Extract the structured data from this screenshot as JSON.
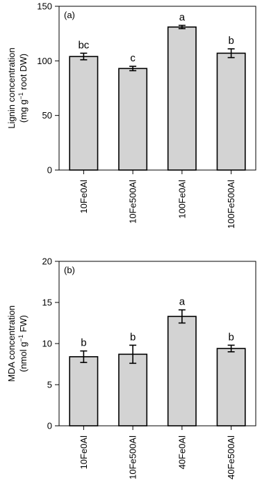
{
  "chart_data": [
    {
      "type": "bar",
      "panel_label": "(a)",
      "ylabel_line1": "Lignin concentration",
      "ylabel_line2": {
        "prefix": "(mg g",
        "sup": "−1",
        "suffix": " root DW)"
      },
      "ylim": [
        0,
        150
      ],
      "yticks": [
        0,
        50,
        100,
        150
      ],
      "categories": [
        "10Fe0Al",
        "10Fe500Al",
        "100Fe0Al",
        "100Fe500Al"
      ],
      "values": [
        104,
        93,
        131,
        107
      ],
      "errors": [
        3,
        2,
        1.5,
        4
      ],
      "letters": [
        "bc",
        "c",
        "a",
        "b"
      ],
      "bar_color": "#d3d3d3"
    },
    {
      "type": "bar",
      "panel_label": "(b)",
      "ylabel_line1": "MDA concentration",
      "ylabel_line2": {
        "prefix": "(nmol g",
        "sup": "−1",
        "suffix": " FW)"
      },
      "ylim": [
        0,
        20
      ],
      "yticks": [
        0,
        5,
        10,
        15,
        20
      ],
      "categories": [
        "10Fe0Al",
        "10Fe500Al",
        "40Fe0Al",
        "40Fe500Al"
      ],
      "values": [
        8.4,
        8.7,
        13.3,
        9.4
      ],
      "errors": [
        0.7,
        1.1,
        0.8,
        0.4
      ],
      "letters": [
        "b",
        "b",
        "a",
        "b"
      ],
      "bar_color": "#d3d3d3"
    }
  ]
}
